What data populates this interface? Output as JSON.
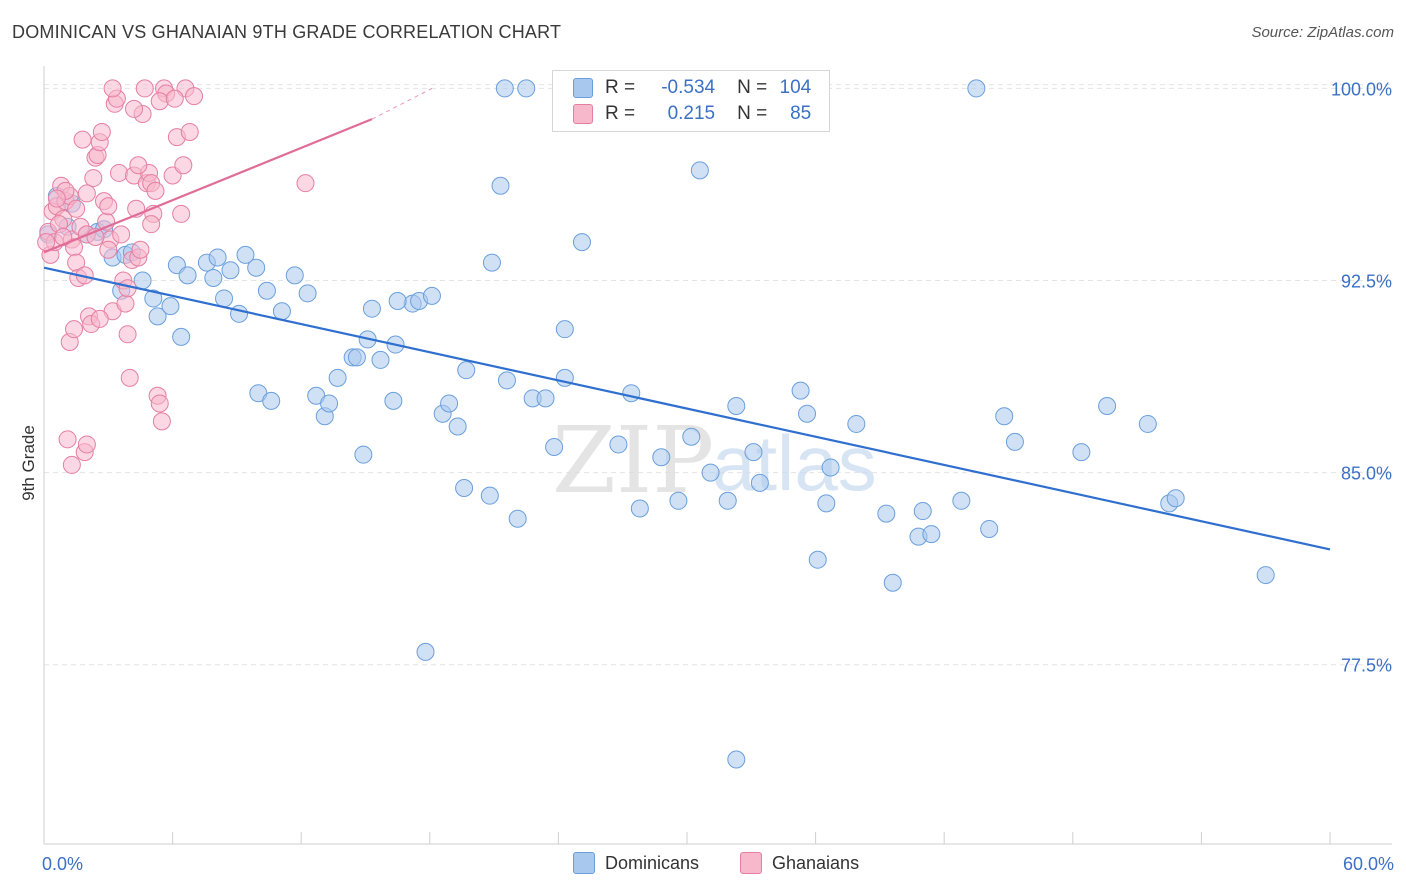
{
  "title": "DOMINICAN VS GHANAIAN 9TH GRADE CORRELATION CHART",
  "source": "Source: ZipAtlas.com",
  "watermark": {
    "zip": "ZIP",
    "atlas": "atlas"
  },
  "legend": {
    "rows": [
      {
        "r_label": "R =",
        "r_value": "-0.534",
        "n_label": "N =",
        "n_value": "104",
        "color": "#a9c8ee",
        "border": "#6a9fdc"
      },
      {
        "r_label": "R =",
        "r_value": "0.215",
        "n_label": "N =",
        "n_value": "85",
        "color": "#f7b8cc",
        "border": "#e57fa2"
      }
    ]
  },
  "bottom_legend": {
    "items": [
      "Dominicans",
      "Ghanaians"
    ]
  },
  "chart_data": {
    "type": "scatter",
    "title": "DOMINICAN VS GHANAIAN 9TH GRADE CORRELATION CHART",
    "xlabel": "",
    "ylabel": "9th Grade",
    "xlim": [
      0,
      60
    ],
    "ylim": [
      70.5,
      101.5
    ],
    "x_tick_labels": [
      "0.0%",
      "60.0%"
    ],
    "y_ticks": [
      {
        "value": 100.0,
        "label": "100.0%"
      },
      {
        "value": 92.5,
        "label": "92.5%"
      },
      {
        "value": 85.0,
        "label": "85.0%"
      },
      {
        "value": 77.5,
        "label": "77.5%"
      }
    ],
    "grid": true,
    "legend_position": "top-center",
    "series": [
      {
        "name": "Dominicans",
        "color": "#a9c8ee",
        "stroke": "#6a9fdc",
        "trend": {
          "x": [
            0,
            60
          ],
          "y": [
            93.0,
            82.0
          ],
          "color": "#2f6fcf"
        },
        "points": [
          [
            0.6,
            95.8
          ],
          [
            1.3,
            95.5
          ],
          [
            2.5,
            94.4
          ],
          [
            2.0,
            94.3
          ],
          [
            3.2,
            93.4
          ],
          [
            3.8,
            93.5
          ],
          [
            4.1,
            93.6
          ],
          [
            4.6,
            92.5
          ],
          [
            3.6,
            92.1
          ],
          [
            5.1,
            91.8
          ],
          [
            5.3,
            91.1
          ],
          [
            6.2,
            93.1
          ],
          [
            6.7,
            92.7
          ],
          [
            7.6,
            93.2
          ],
          [
            8.1,
            93.4
          ],
          [
            7.9,
            92.6
          ],
          [
            8.4,
            91.8
          ],
          [
            9.1,
            91.2
          ],
          [
            9.9,
            93.0
          ],
          [
            9.4,
            93.5
          ],
          [
            10.4,
            92.1
          ],
          [
            11.1,
            91.3
          ],
          [
            10.0,
            88.1
          ],
          [
            10.6,
            87.8
          ],
          [
            11.7,
            92.7
          ],
          [
            12.3,
            92.0
          ],
          [
            12.7,
            88.0
          ],
          [
            13.1,
            87.2
          ],
          [
            13.3,
            87.7
          ],
          [
            13.7,
            88.7
          ],
          [
            14.4,
            89.5
          ],
          [
            14.6,
            89.5
          ],
          [
            15.1,
            90.2
          ],
          [
            15.3,
            91.4
          ],
          [
            14.9,
            85.7
          ],
          [
            15.7,
            89.4
          ],
          [
            16.4,
            90.0
          ],
          [
            16.3,
            87.8
          ],
          [
            17.2,
            91.6
          ],
          [
            17.5,
            91.7
          ],
          [
            18.1,
            91.9
          ],
          [
            17.8,
            78.0
          ],
          [
            18.6,
            87.3
          ],
          [
            18.9,
            87.7
          ],
          [
            19.3,
            86.8
          ],
          [
            19.6,
            84.4
          ],
          [
            20.8,
            84.1
          ],
          [
            20.9,
            93.2
          ],
          [
            21.6,
            88.6
          ],
          [
            22.1,
            83.2
          ],
          [
            22.8,
            87.9
          ],
          [
            21.3,
            96.2
          ],
          [
            23.8,
            86.0
          ],
          [
            24.3,
            88.7
          ],
          [
            24.8,
            100.0
          ],
          [
            24.3,
            90.6
          ],
          [
            25.1,
            94.0
          ],
          [
            23.4,
            87.9
          ],
          [
            26.8,
            86.1
          ],
          [
            27.4,
            88.1
          ],
          [
            27.8,
            83.6
          ],
          [
            28.8,
            85.6
          ],
          [
            29.6,
            83.9
          ],
          [
            30.6,
            96.8
          ],
          [
            30.2,
            86.4
          ],
          [
            31.1,
            85.0
          ],
          [
            31.9,
            83.9
          ],
          [
            32.3,
            87.6
          ],
          [
            33.1,
            85.8
          ],
          [
            33.4,
            84.6
          ],
          [
            35.3,
            88.2
          ],
          [
            35.6,
            87.3
          ],
          [
            36.1,
            81.6
          ],
          [
            36.5,
            83.8
          ],
          [
            36.7,
            85.2
          ],
          [
            37.9,
            86.9
          ],
          [
            39.3,
            83.4
          ],
          [
            39.6,
            80.7
          ],
          [
            40.8,
            82.5
          ],
          [
            41.0,
            83.5
          ],
          [
            41.4,
            82.6
          ],
          [
            42.8,
            83.9
          ],
          [
            43.5,
            100.0
          ],
          [
            44.1,
            82.8
          ],
          [
            44.8,
            87.2
          ],
          [
            45.3,
            86.2
          ],
          [
            48.4,
            85.8
          ],
          [
            49.6,
            87.6
          ],
          [
            51.5,
            86.9
          ],
          [
            52.5,
            83.8
          ],
          [
            52.8,
            84.0
          ],
          [
            57.0,
            81.0
          ],
          [
            32.3,
            73.8
          ],
          [
            34.8,
            100.0
          ],
          [
            22.5,
            100.0
          ],
          [
            21.5,
            100.0
          ],
          [
            1.1,
            94.6
          ],
          [
            0.2,
            94.3
          ],
          [
            2.8,
            94.5
          ],
          [
            6.4,
            90.3
          ],
          [
            5.9,
            91.5
          ],
          [
            8.7,
            92.9
          ],
          [
            16.5,
            91.7
          ],
          [
            19.7,
            89.0
          ]
        ]
      },
      {
        "name": "Ghanaians",
        "color": "#f7b8cc",
        "stroke": "#e57fa2",
        "trend": {
          "x": [
            0,
            15.3
          ],
          "y": [
            93.6,
            98.8
          ],
          "dash_to": [
            18.1,
            100.0
          ],
          "color": "#e06c98"
        },
        "points": [
          [
            0.2,
            94.4
          ],
          [
            0.4,
            95.2
          ],
          [
            0.6,
            95.4
          ],
          [
            0.8,
            96.2
          ],
          [
            0.9,
            94.9
          ],
          [
            1.0,
            95.6
          ],
          [
            1.2,
            95.8
          ],
          [
            1.3,
            94.1
          ],
          [
            1.4,
            93.8
          ],
          [
            1.5,
            93.2
          ],
          [
            1.6,
            92.6
          ],
          [
            1.7,
            94.6
          ],
          [
            1.8,
            98.0
          ],
          [
            1.9,
            92.7
          ],
          [
            2.0,
            94.3
          ],
          [
            2.1,
            91.1
          ],
          [
            2.2,
            90.8
          ],
          [
            2.3,
            96.5
          ],
          [
            2.4,
            97.3
          ],
          [
            2.5,
            97.4
          ],
          [
            2.6,
            97.9
          ],
          [
            2.7,
            98.3
          ],
          [
            2.8,
            95.6
          ],
          [
            2.9,
            94.8
          ],
          [
            3.0,
            95.4
          ],
          [
            3.1,
            94.1
          ],
          [
            3.2,
            91.3
          ],
          [
            3.3,
            99.4
          ],
          [
            3.4,
            99.6
          ],
          [
            3.5,
            96.7
          ],
          [
            3.6,
            94.3
          ],
          [
            3.7,
            92.5
          ],
          [
            3.8,
            91.6
          ],
          [
            3.9,
            90.4
          ],
          [
            4.0,
            88.7
          ],
          [
            4.1,
            93.3
          ],
          [
            4.2,
            96.6
          ],
          [
            4.3,
            95.3
          ],
          [
            4.4,
            93.4
          ],
          [
            4.5,
            93.7
          ],
          [
            4.6,
            99.0
          ],
          [
            4.7,
            100.0
          ],
          [
            4.8,
            96.3
          ],
          [
            4.9,
            96.7
          ],
          [
            5.0,
            96.3
          ],
          [
            5.1,
            95.1
          ],
          [
            5.2,
            96.0
          ],
          [
            5.3,
            88.0
          ],
          [
            5.4,
            87.7
          ],
          [
            5.5,
            87.0
          ],
          [
            5.6,
            100.0
          ],
          [
            5.7,
            99.8
          ],
          [
            6.0,
            96.6
          ],
          [
            6.2,
            98.1
          ],
          [
            6.4,
            95.1
          ],
          [
            6.6,
            100.0
          ],
          [
            6.8,
            98.3
          ],
          [
            7.0,
            99.7
          ],
          [
            1.1,
            86.3
          ],
          [
            1.3,
            85.3
          ],
          [
            1.9,
            85.8
          ],
          [
            2.0,
            86.1
          ],
          [
            1.2,
            90.1
          ],
          [
            1.4,
            90.6
          ],
          [
            0.3,
            93.5
          ],
          [
            0.5,
            94.0
          ],
          [
            0.7,
            94.7
          ],
          [
            1.0,
            96.0
          ],
          [
            1.5,
            95.3
          ],
          [
            2.4,
            94.2
          ],
          [
            3.9,
            92.2
          ],
          [
            2.6,
            91.0
          ],
          [
            4.4,
            97.0
          ],
          [
            5.0,
            94.7
          ],
          [
            3.2,
            100.0
          ],
          [
            12.2,
            96.3
          ],
          [
            6.5,
            97.0
          ],
          [
            0.1,
            94.0
          ],
          [
            0.6,
            95.7
          ],
          [
            0.9,
            94.2
          ],
          [
            2.0,
            95.9
          ],
          [
            3.0,
            93.7
          ],
          [
            5.4,
            99.5
          ],
          [
            6.1,
            99.6
          ],
          [
            4.2,
            99.2
          ]
        ]
      }
    ]
  }
}
